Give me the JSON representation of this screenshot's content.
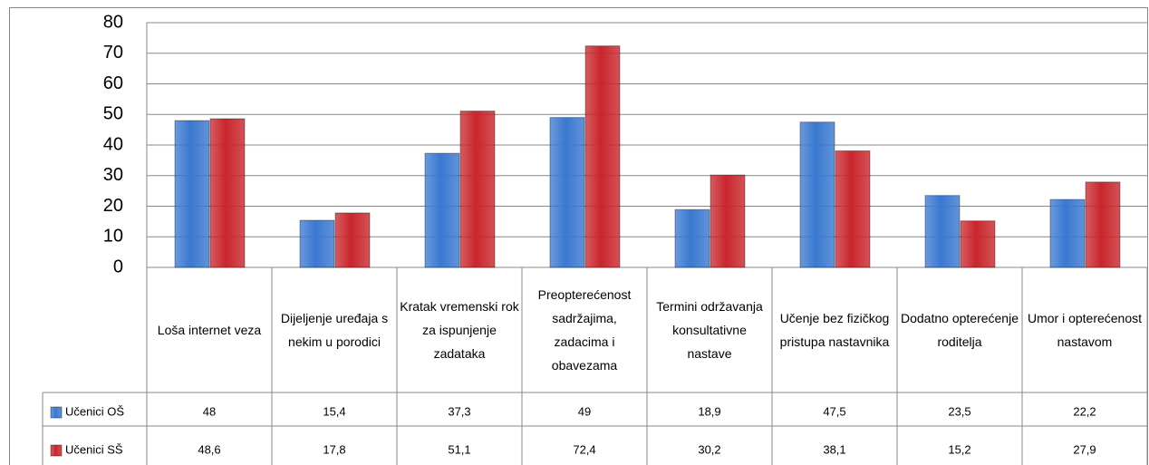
{
  "chart_data": {
    "type": "bar",
    "categories": [
      "Loša internet veza",
      "Dijeljenje uređaja s nekim u porodici",
      "Kratak vremenski rok za ispunjenje zadataka",
      "Preopterećenost sadržajima, zadacima i obavezama",
      "Termini održavanja konsultativne nastave",
      "Učenje bez fizičkog pristupa nastavnika",
      "Dodatno opterećenje roditelja",
      "Umor i opterećenost nastavom"
    ],
    "series": [
      {
        "name": "Učenici OŠ",
        "color": "#3a78d0",
        "values": [
          48,
          15.4,
          37.3,
          49,
          18.9,
          47.5,
          23.5,
          22.2
        ],
        "value_labels": [
          "48",
          "15,4",
          "37,3",
          "49",
          "18,9",
          "47,5",
          "23,5",
          "22,2"
        ]
      },
      {
        "name": "Učenici SŠ",
        "color": "#c8262c",
        "values": [
          48.6,
          17.8,
          51.1,
          72.4,
          30.2,
          38.1,
          15.2,
          27.9
        ],
        "value_labels": [
          "48,6",
          "17,8",
          "51,1",
          "72,4",
          "30,2",
          "38,1",
          "15,2",
          "27,9"
        ]
      }
    ],
    "ylim": [
      0,
      80
    ],
    "yticks": [
      0,
      10,
      20,
      30,
      40,
      50,
      60,
      70,
      80
    ],
    "grid": true,
    "legend": "table"
  }
}
